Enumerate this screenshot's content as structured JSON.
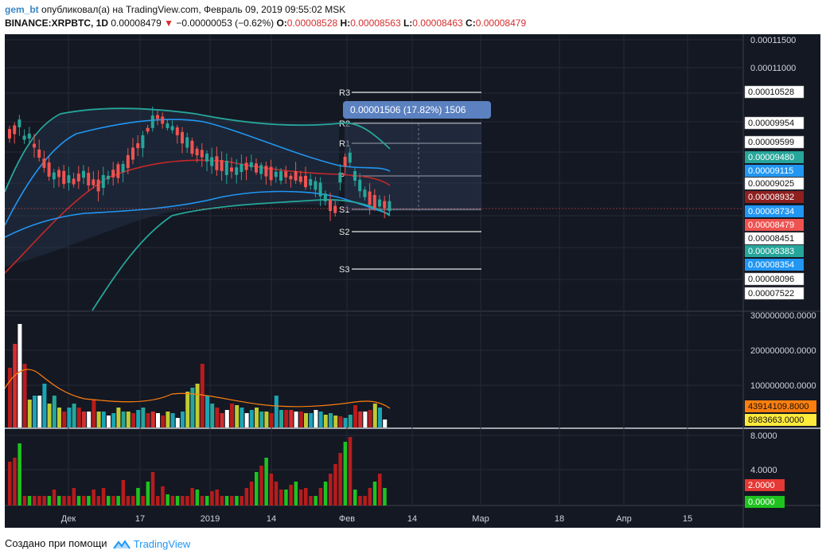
{
  "header": {
    "author": "gem_bt",
    "published_text": "опубликовал(а) на TradingView.com, Февраль 09, 2019 09:55:02 MSK",
    "symbol": "BINANCE:XRPBTC, 1D",
    "last_price": "0.00008479",
    "change": "−0.00000053 (−0.62%)",
    "open_label": "O:",
    "open_value": "0.00008528",
    "high_label": "H:",
    "high_value": "0.00008563",
    "low_label": "L:",
    "low_value": "0.00008463",
    "close_label": "C:",
    "close_value": "0.00008479"
  },
  "colors": {
    "bg": "#141823",
    "grid": "#252a37",
    "up": "#26a69a",
    "down": "#ef5350",
    "bb_outer": "#26a69a",
    "bb_inner": "#2196f3",
    "ma": "#c62828",
    "axis_text": "#d1d4dc",
    "measure": "#5b81c0"
  },
  "chart_data": {
    "type": "candlestick",
    "price_axis_ticks": [
      "0.00011500",
      "0.00011000",
      "0.00009025",
      "0.00008096",
      "0.00007522"
    ],
    "price_tags": [
      {
        "text": "0.00010528",
        "color": "#ffffff"
      },
      {
        "text": "0.00009954",
        "color": "#ffffff"
      },
      {
        "text": "0.00009599",
        "color": "#ffffff"
      },
      {
        "text": "0.00009480",
        "color": "#26a69a"
      },
      {
        "text": "0.00009115",
        "color": "#2196f3"
      },
      {
        "text": "0.00009025",
        "color": "#ffffff"
      },
      {
        "text": "0.00008932",
        "color": "#8e2020"
      },
      {
        "text": "0.00008734",
        "color": "#2196f3"
      },
      {
        "text": "0.00008479",
        "color": "#ef5350"
      },
      {
        "text": "0.00008451",
        "color": "#ffffff"
      },
      {
        "text": "0.00008383",
        "color": "#26a69a"
      },
      {
        "text": "0.00008354",
        "color": "#2196f3"
      },
      {
        "text": "0.00008096",
        "color": "#ffffff"
      },
      {
        "text": "0.00007522",
        "color": "#ffffff"
      }
    ],
    "pivot_labels": [
      "R3",
      "R2",
      "R1",
      "P",
      "S1",
      "S2",
      "S3"
    ],
    "measure_label": "0.00001506 (17.82%) 1506",
    "volume_axis_ticks": [
      "300000000.0000",
      "200000000.0000",
      "100000000.0000"
    ],
    "volume_tags": [
      {
        "text": "43914109.8000",
        "color": "#ff7f0e"
      },
      {
        "text": "8983663.0000",
        "color": "#ffeb3b"
      }
    ],
    "indicator_axis_ticks": [
      "8.0000",
      "4.0000"
    ],
    "indicator_tags": [
      {
        "text": "2.0000",
        "color": "#e53935"
      },
      {
        "text": "0.0000",
        "color": "#1ec31e"
      }
    ],
    "time_labels": [
      "Дек",
      "17",
      "2019",
      "14",
      "Фев",
      "14",
      "Мар",
      "18",
      "Апр",
      "15"
    ]
  },
  "footer": {
    "created_with": "Создано при помощи",
    "brand": "TradingView"
  }
}
